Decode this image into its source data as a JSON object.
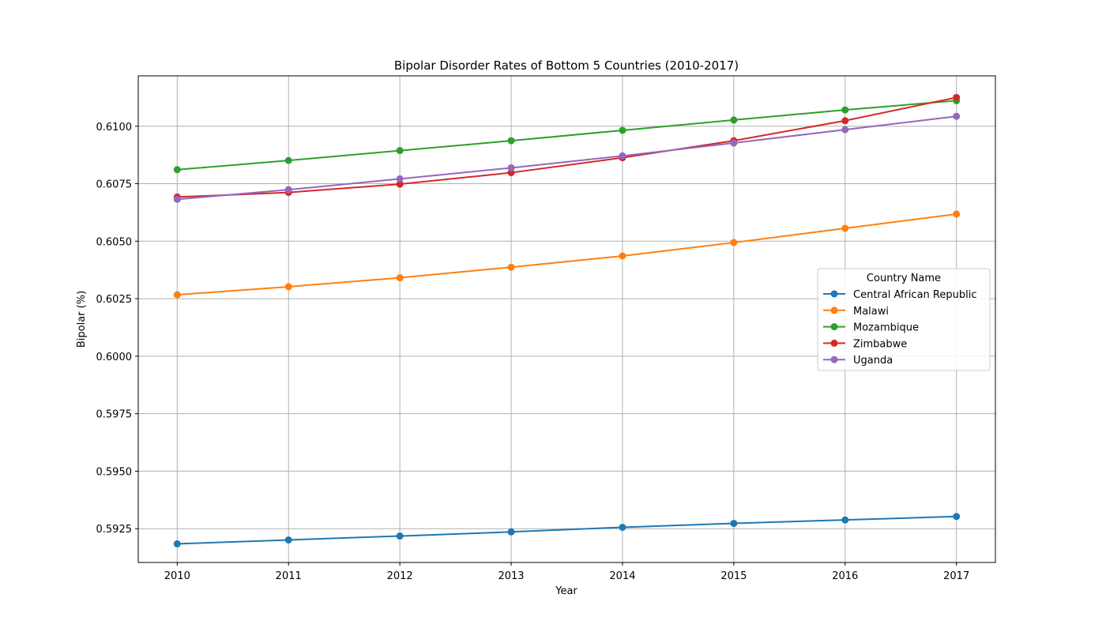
{
  "chart_data": {
    "type": "line",
    "title": "Bipolar Disorder Rates of Bottom 5 Countries (2010-2017)",
    "xlabel": "Year",
    "ylabel": "Bipolar (%)",
    "x": [
      2010,
      2011,
      2012,
      2013,
      2014,
      2015,
      2016,
      2017
    ],
    "x_ticks": [
      "2010",
      "2011",
      "2012",
      "2013",
      "2014",
      "2015",
      "2016",
      "2017"
    ],
    "xlim": [
      2009.65,
      2017.35
    ],
    "ylim": [
      0.59103,
      0.61219
    ],
    "y_ticks": [
      "0.5925",
      "0.5950",
      "0.5975",
      "0.6000",
      "0.6025",
      "0.6050",
      "0.6075",
      "0.6100"
    ],
    "grid": true,
    "legend": {
      "title": "Country Name",
      "position": "center-right"
    },
    "series": [
      {
        "name": "Central African Republic",
        "color": "#1f77b4",
        "values": [
          0.59184,
          0.59201,
          0.59218,
          0.59236,
          0.59256,
          0.59273,
          0.59288,
          0.59303
        ]
      },
      {
        "name": "Malawi",
        "color": "#ff7f0e",
        "values": [
          0.60267,
          0.60302,
          0.60341,
          0.60387,
          0.60436,
          0.60494,
          0.60556,
          0.60618
        ]
      },
      {
        "name": "Mozambique",
        "color": "#2ca02c",
        "values": [
          0.60811,
          0.60851,
          0.60894,
          0.60937,
          0.60982,
          0.61027,
          0.61071,
          0.61111
        ]
      },
      {
        "name": "Zimbabwe",
        "color": "#d62728",
        "values": [
          0.60692,
          0.60712,
          0.60748,
          0.60798,
          0.60863,
          0.60937,
          0.61024,
          0.61125
        ]
      },
      {
        "name": "Uganda",
        "color": "#9467bd",
        "values": [
          0.60682,
          0.60724,
          0.60771,
          0.60819,
          0.60871,
          0.60927,
          0.60985,
          0.61043
        ]
      }
    ]
  }
}
